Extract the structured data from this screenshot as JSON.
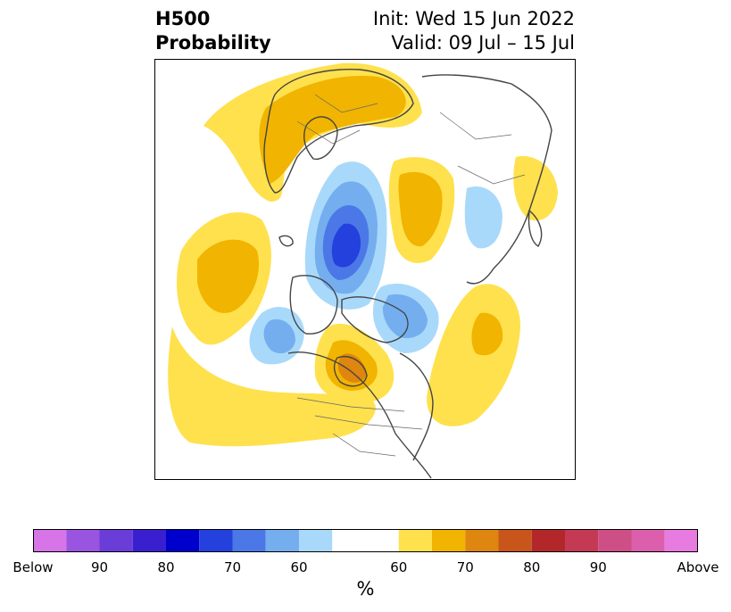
{
  "header": {
    "title_line1": "H500",
    "title_line2": "Probability",
    "init_label": "Init: Wed 15 Jun 2022",
    "valid_label": "Valid: 09 Jul – 15 Jul"
  },
  "colorbar": {
    "colors": [
      "#d674e8",
      "#9a55e0",
      "#6a3cd8",
      "#3a1fd0",
      "#0000cc",
      "#2440dd",
      "#4b78e6",
      "#74aeef",
      "#a9d9fa",
      "#ffffff",
      "#fee14d",
      "#f1b400",
      "#de860f",
      "#c8561b",
      "#b3272a",
      "#c43a55",
      "#cd4f85",
      "#db5fac",
      "#e87be0"
    ],
    "tick_labels": [
      "Below",
      "90",
      "80",
      "70",
      "60",
      "60",
      "70",
      "80",
      "90",
      "Above"
    ],
    "unit": "%"
  },
  "map": {
    "below_color": "#4b78e6",
    "above_color": "#f1b400"
  }
}
